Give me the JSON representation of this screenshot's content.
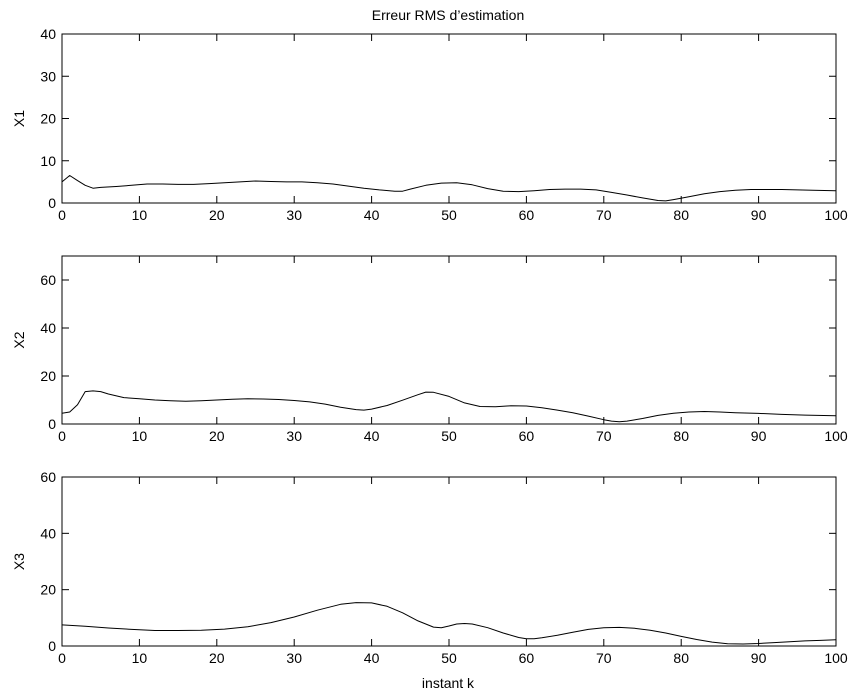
{
  "figure": {
    "title": "Erreur RMS d’estimation",
    "xlabel": "instant k"
  },
  "chart_data": [
    {
      "type": "line",
      "title": "Erreur RMS d’estimation",
      "ylabel": "X1",
      "xlabel": "",
      "xlim": [
        0,
        100
      ],
      "ylim": [
        0,
        40
      ],
      "xticks": [
        0,
        10,
        20,
        30,
        40,
        50,
        60,
        70,
        80,
        90,
        100
      ],
      "yticks": [
        0,
        10,
        20,
        30,
        40
      ],
      "grid": false,
      "series": [
        {
          "x": [
            0,
            1,
            2,
            3,
            4,
            5,
            7,
            9,
            11,
            13,
            15,
            17,
            19,
            21,
            23,
            25,
            27,
            29,
            31,
            33,
            35,
            37,
            39,
            41,
            43,
            44,
            45,
            47,
            49,
            51,
            53,
            55,
            57,
            59,
            61,
            63,
            65,
            67,
            69,
            71,
            73,
            75,
            77,
            78,
            79,
            81,
            83,
            85,
            87,
            89,
            91,
            93,
            95,
            97,
            100
          ],
          "y": [
            5.0,
            6.5,
            5.3,
            4.2,
            3.5,
            3.7,
            3.9,
            4.2,
            4.5,
            4.5,
            4.4,
            4.4,
            4.6,
            4.8,
            5.0,
            5.2,
            5.1,
            5.0,
            5.0,
            4.8,
            4.5,
            4.0,
            3.5,
            3.1,
            2.8,
            2.8,
            3.3,
            4.2,
            4.7,
            4.8,
            4.3,
            3.4,
            2.8,
            2.7,
            2.9,
            3.2,
            3.3,
            3.3,
            3.1,
            2.5,
            1.9,
            1.2,
            0.6,
            0.5,
            0.8,
            1.5,
            2.2,
            2.7,
            3.0,
            3.2,
            3.2,
            3.2,
            3.1,
            3.0,
            2.9
          ]
        }
      ]
    },
    {
      "type": "line",
      "ylabel": "X2",
      "xlabel": "",
      "xlim": [
        0,
        100
      ],
      "ylim": [
        0,
        70
      ],
      "xticks": [
        0,
        10,
        20,
        30,
        40,
        50,
        60,
        70,
        80,
        90,
        100
      ],
      "yticks": [
        0,
        20,
        40,
        60
      ],
      "grid": false,
      "series": [
        {
          "x": [
            0,
            1,
            2,
            3,
            4,
            5,
            6,
            8,
            10,
            12,
            14,
            16,
            18,
            20,
            22,
            24,
            26,
            28,
            30,
            32,
            34,
            36,
            38,
            39,
            40,
            42,
            44,
            46,
            47,
            48,
            50,
            52,
            54,
            56,
            58,
            60,
            62,
            64,
            66,
            68,
            70,
            71,
            72,
            73,
            75,
            77,
            79,
            81,
            83,
            85,
            87,
            90,
            93,
            96,
            100
          ],
          "y": [
            4.5,
            5.0,
            8.0,
            13.5,
            13.8,
            13.5,
            12.5,
            11.0,
            10.5,
            10.0,
            9.7,
            9.5,
            9.7,
            10.0,
            10.3,
            10.5,
            10.4,
            10.2,
            9.8,
            9.2,
            8.3,
            7.0,
            6.0,
            5.8,
            6.2,
            7.7,
            9.9,
            12.2,
            13.3,
            13.2,
            11.5,
            8.8,
            7.3,
            7.2,
            7.6,
            7.5,
            6.8,
            5.8,
            4.7,
            3.3,
            1.8,
            1.2,
            0.9,
            1.2,
            2.3,
            3.6,
            4.5,
            5.0,
            5.2,
            5.0,
            4.7,
            4.4,
            4.0,
            3.7,
            3.4
          ]
        }
      ]
    },
    {
      "type": "line",
      "ylabel": "X3",
      "xlabel": "instant k",
      "xlim": [
        0,
        100
      ],
      "ylim": [
        0,
        60
      ],
      "xticks": [
        0,
        10,
        20,
        30,
        40,
        50,
        60,
        70,
        80,
        90,
        100
      ],
      "yticks": [
        0,
        20,
        40,
        60
      ],
      "grid": false,
      "series": [
        {
          "x": [
            0,
            3,
            6,
            9,
            12,
            15,
            18,
            21,
            24,
            27,
            30,
            33,
            36,
            38,
            40,
            42,
            44,
            46,
            48,
            49,
            50,
            51,
            52,
            53,
            55,
            57,
            59,
            60,
            61,
            62,
            64,
            66,
            68,
            70,
            72,
            74,
            76,
            78,
            80,
            82,
            84,
            86,
            88,
            90,
            92,
            94,
            96,
            98,
            100
          ],
          "y": [
            7.5,
            7.0,
            6.4,
            5.9,
            5.5,
            5.5,
            5.6,
            6.0,
            6.8,
            8.3,
            10.3,
            12.7,
            14.8,
            15.4,
            15.3,
            14.1,
            11.8,
            8.9,
            6.7,
            6.5,
            7.1,
            7.8,
            8.0,
            7.8,
            6.5,
            4.6,
            3.0,
            2.6,
            2.6,
            2.9,
            3.8,
            4.9,
            5.9,
            6.5,
            6.6,
            6.3,
            5.6,
            4.6,
            3.4,
            2.3,
            1.4,
            0.8,
            0.7,
            0.9,
            1.2,
            1.5,
            1.8,
            2.0,
            2.2
          ]
        }
      ]
    }
  ]
}
